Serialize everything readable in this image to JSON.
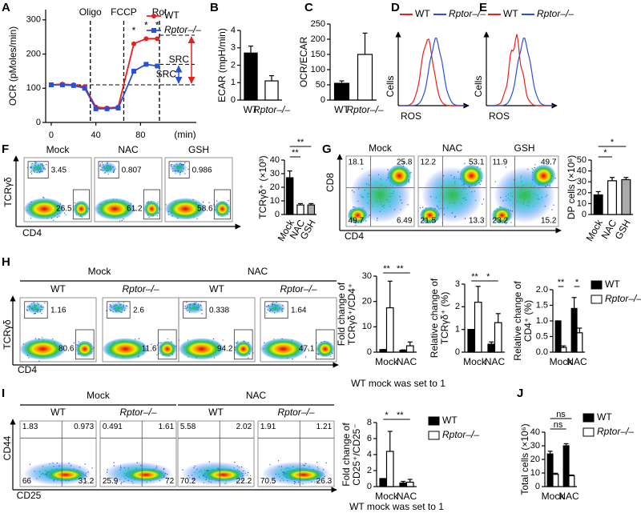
{
  "panel_labels": [
    "A",
    "B",
    "C",
    "D",
    "E",
    "F",
    "G",
    "H",
    "I",
    "J"
  ],
  "chart_data": [
    {
      "type": "line",
      "ylabel": "OCR (pMoles/min)",
      "xlabel": "(min)",
      "x": [
        0,
        10,
        20,
        30,
        40,
        50,
        60,
        74,
        85,
        95
      ],
      "series": [
        {
          "name": "WT",
          "color": "#e8201e",
          "values": [
            110,
            112,
            110,
            105,
            45,
            42,
            45,
            230,
            245,
            245
          ]
        },
        {
          "name": "Rptor–/–",
          "color": "#2a4fd8",
          "values": [
            110,
            110,
            108,
            100,
            40,
            40,
            42,
            150,
            170,
            165
          ]
        }
      ],
      "xlim": [
        -5,
        130
      ],
      "ylim": [
        0,
        330
      ],
      "xticks": [
        0,
        40,
        80
      ],
      "yticks": [
        0,
        100,
        200,
        300
      ],
      "injections": [
        {
          "label": "Oligo",
          "x": 35
        },
        {
          "label": "FCCP",
          "x": 65
        },
        {
          "label": "Rot",
          "x": 97
        }
      ],
      "stars": [
        {
          "text": "*",
          "x": 74
        },
        {
          "text": "*",
          "x": 85
        },
        {
          "text": "*",
          "x": 95
        }
      ],
      "src": [
        {
          "label": "SRC",
          "color": "#e8201e",
          "from": 110,
          "to": 255
        },
        {
          "label": "SRC",
          "color": "#2a4fd8",
          "from": 110,
          "to": 170
        }
      ]
    },
    {
      "type": "bar",
      "ylabel": "ECAR (mpH/min)",
      "categories": [
        "WT",
        "Rptor–/–"
      ],
      "values": [
        2.7,
        1.1
      ],
      "errors": [
        0.4,
        0.3
      ],
      "colors": [
        "#000000",
        "#ffffff"
      ],
      "ylim": [
        0,
        4
      ],
      "yticks": [
        0,
        1,
        2,
        3,
        4
      ]
    },
    {
      "type": "bar",
      "ylabel": "OCR/ECAR",
      "categories": [
        "WT",
        "Rptor–/–"
      ],
      "values": [
        55,
        150
      ],
      "errors": [
        8,
        70
      ],
      "colors": [
        "#000000",
        "#ffffff"
      ],
      "ylim": [
        0,
        250
      ],
      "yticks": [
        0,
        50,
        100,
        150,
        200,
        250
      ]
    },
    {
      "type": "bar",
      "ylabel": "TCRγδ⁺ (×10³)",
      "categories": [
        "Mock",
        "NAC",
        "GSH"
      ],
      "values": [
        27,
        7,
        7
      ],
      "errors": [
        5,
        1,
        1
      ],
      "colors": [
        "#000000",
        "#ffffff",
        "#aaaaaa"
      ],
      "ylim": [
        0,
        40
      ],
      "yticks": [
        0,
        10,
        20,
        30,
        40
      ],
      "significance": [
        "**",
        "**"
      ]
    },
    {
      "type": "bar",
      "ylabel": "DP cells (×10⁶)",
      "categories": [
        "Mock",
        "NAC",
        "GSH"
      ],
      "values": [
        18,
        31,
        32
      ],
      "errors": [
        3,
        3,
        2
      ],
      "colors": [
        "#000000",
        "#ffffff",
        "#aaaaaa"
      ],
      "ylim": [
        0,
        50
      ],
      "yticks": [
        0,
        10,
        20,
        30,
        40,
        50
      ],
      "significance": [
        "*",
        "*"
      ]
    },
    {
      "type": "bar",
      "ylabel": [
        "Fold change of",
        "TCRγδ⁺/CD4⁺"
      ],
      "categories": [
        "Mock",
        "NAC"
      ],
      "series": [
        {
          "name": "WT",
          "color": "#000000",
          "values": [
            1,
            0.7
          ],
          "errors": [
            0,
            0.2
          ]
        },
        {
          "name": "Rptor–/–",
          "color": "#ffffff",
          "values": [
            17.5,
            2.5
          ],
          "errors": [
            10.5,
            1.5
          ]
        }
      ],
      "ylim": [
        0,
        30
      ],
      "yticks": [
        0,
        10,
        20,
        30
      ],
      "significance": [
        "**",
        "**"
      ],
      "note": "WT mock was set to 1"
    },
    {
      "type": "bar",
      "ylabel": [
        "Relative change of",
        "TCRγδ⁺ (%)"
      ],
      "categories": [
        "Mock",
        "NAC"
      ],
      "series": [
        {
          "name": "WT",
          "color": "#000000",
          "values": [
            1,
            0.35
          ],
          "errors": [
            0,
            0.1
          ]
        },
        {
          "name": "Rptor–/–",
          "color": "#ffffff",
          "values": [
            2.2,
            1.3
          ],
          "errors": [
            0.7,
            0.4
          ]
        }
      ],
      "ylim": [
        0,
        3
      ],
      "yticks": [
        0,
        1,
        2,
        3
      ],
      "significance": [
        "**",
        "*"
      ]
    },
    {
      "type": "bar",
      "ylabel": [
        "Relative change of",
        "CD4⁺ (%)"
      ],
      "categories": [
        "Mock",
        "NAC"
      ],
      "series": [
        {
          "name": "WT",
          "color": "#000000",
          "values": [
            1,
            1.4
          ],
          "errors": [
            0,
            0.35
          ]
        },
        {
          "name": "Rptor–/–",
          "color": "#ffffff",
          "values": [
            0.15,
            0.62
          ],
          "errors": [
            0.05,
            0.15
          ]
        }
      ],
      "ylim": [
        0,
        2
      ],
      "yticks": [
        {
          "value": 0,
          "label": "0.0"
        },
        {
          "value": 0.5,
          "label": "0.5"
        },
        {
          "value": 1,
          "label": "1.0"
        },
        {
          "value": 1.5,
          "label": "1.5"
        },
        {
          "value": 2,
          "label": "2.0"
        }
      ],
      "significance": [
        "**",
        "*"
      ],
      "legend": true
    },
    {
      "type": "bar",
      "ylabel": [
        "Fold change of",
        "CD25⁺/CD25⁻"
      ],
      "categories": [
        "Mock",
        "NAC"
      ],
      "series": [
        {
          "name": "WT",
          "color": "#000000",
          "values": [
            1,
            0.45
          ],
          "errors": [
            0,
            0.2
          ]
        },
        {
          "name": "Rptor–/–",
          "color": "#ffffff",
          "values": [
            4.4,
            0.55
          ],
          "errors": [
            2.5,
            0.35
          ]
        }
      ],
      "ylim": [
        0,
        8
      ],
      "yticks": [
        0,
        2,
        4,
        6,
        8
      ],
      "significance": [
        "*",
        "**"
      ],
      "legend": true,
      "note": "WT mock was set to 1"
    },
    {
      "type": "bar",
      "ylabel": "Total cells (×10⁶)",
      "categories": [
        "Mock",
        "NAC"
      ],
      "series": [
        {
          "name": "WT",
          "color": "#000000",
          "values": [
            24,
            30
          ],
          "errors": [
            2,
            1.5
          ]
        },
        {
          "name": "Rptor–/–",
          "color": "#ffffff",
          "values": [
            9,
            8
          ],
          "errors": [
            0.8,
            0.5
          ]
        }
      ],
      "ylim": [
        0,
        40
      ],
      "yticks": [
        0,
        10,
        20,
        30,
        40
      ],
      "significance": [
        "ns",
        "ns"
      ],
      "legend": true
    }
  ],
  "histograms": [
    {
      "legend": [
        "WT",
        "Rptor–/–"
      ],
      "colors": [
        "#e8201e",
        "#2a4fd8"
      ],
      "y_axis": "Cells",
      "x_axis": "ROS"
    },
    {
      "legend": [
        "WT",
        "Rptor–/–"
      ],
      "colors": [
        "#e8201e",
        "#2a4fd8"
      ],
      "y_axis": "Cells",
      "x_axis": "ROS"
    }
  ],
  "flow_rows": [
    {
      "y_axis": "TCRγδ",
      "x_axis": "CD4",
      "plots": [
        {
          "title": "Mock",
          "gates": [
            "3.45",
            "26.5"
          ]
        },
        {
          "title": "NAC",
          "gates": [
            "0.807",
            "61.2"
          ]
        },
        {
          "title": "GSH",
          "gates": [
            "0.986",
            "58.6"
          ]
        }
      ]
    },
    {
      "y_axis": "CD8",
      "x_axis": "CD4",
      "plots": [
        {
          "title": "Mock",
          "gates": [
            "18.1",
            "25.8",
            "49.7",
            "6.49"
          ]
        },
        {
          "title": "NAC",
          "gates": [
            "12.2",
            "53.1",
            "21.5",
            "13.3"
          ]
        },
        {
          "title": "GSH",
          "gates": [
            "11.9",
            "49.7",
            "23.2",
            "15.2"
          ]
        }
      ]
    },
    {
      "y_axis": "TCRγδ",
      "x_axis": "CD4",
      "groups": [
        {
          "label": "Mock",
          "subs": [
            "WT",
            "Rptor–/–"
          ]
        },
        {
          "label": "NAC",
          "subs": [
            "WT",
            "Rptor–/–"
          ]
        }
      ],
      "plots": [
        {
          "gates": [
            "1.16",
            "80.6"
          ]
        },
        {
          "gates": [
            "2.6",
            "11.6"
          ]
        },
        {
          "gates": [
            "0.338",
            "94.2"
          ]
        },
        {
          "gates": [
            "1.64",
            "47.1"
          ]
        }
      ]
    },
    {
      "y_axis": "CD44",
      "x_axis": "CD25",
      "groups": [
        {
          "label": "Mock",
          "subs": [
            "WT",
            "Rptor–/–"
          ]
        },
        {
          "label": "NAC",
          "subs": [
            "WT",
            "Rptor–/–"
          ]
        }
      ],
      "plots": [
        {
          "gates": [
            "1.83",
            "0.973",
            "66",
            "31.2"
          ]
        },
        {
          "gates": [
            "0.491",
            "1.61",
            "25.9",
            "72"
          ]
        },
        {
          "gates": [
            "5.58",
            "2.02",
            "70.2",
            "22.2"
          ]
        },
        {
          "gates": [
            "1.91",
            "1.21",
            "70.5",
            "26.3"
          ]
        }
      ]
    }
  ]
}
